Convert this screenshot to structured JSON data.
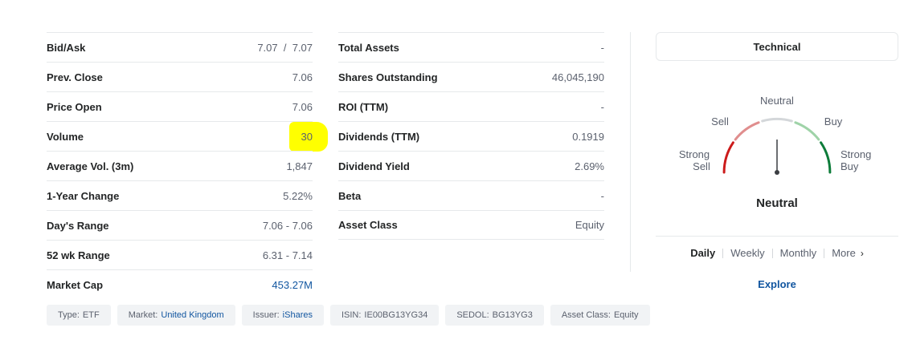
{
  "left_table": [
    {
      "label": "Bid/Ask",
      "value": "7.07  /  7.07"
    },
    {
      "label": "Prev. Close",
      "value": "7.06"
    },
    {
      "label": "Price Open",
      "value": "7.06"
    },
    {
      "label": "Volume",
      "value": "30"
    },
    {
      "label": "Average Vol. (3m)",
      "value": "1,847"
    },
    {
      "label": "1-Year Change",
      "value": "5.22%"
    },
    {
      "label": "Day's Range",
      "value": "7.06 - 7.06"
    },
    {
      "label": "52 wk Range",
      "value": "6.31 - 7.14"
    },
    {
      "label": "Market Cap",
      "value": "453.27M"
    }
  ],
  "mid_table": [
    {
      "label": "Total Assets",
      "value": "-"
    },
    {
      "label": "Shares Outstanding",
      "value": "46,045,190"
    },
    {
      "label": "ROI (TTM)",
      "value": "-"
    },
    {
      "label": "Dividends (TTM)",
      "value": "0.1919"
    },
    {
      "label": "Dividend Yield",
      "value": "2.69%"
    },
    {
      "label": "Beta",
      "value": "-"
    },
    {
      "label": "Asset Class",
      "value": "Equity"
    }
  ],
  "technical": {
    "title": "Technical",
    "gauge_labels": {
      "strong_sell_1": "Strong",
      "strong_sell_2": "Sell",
      "sell": "Sell",
      "neutral": "Neutral",
      "buy": "Buy",
      "strong_buy_1": "Strong",
      "strong_buy_2": "Buy"
    },
    "summary": "Neutral",
    "periods": [
      "Daily",
      "Weekly",
      "Monthly",
      "More"
    ],
    "active_period": "Daily",
    "explore": "Explore",
    "colors": {
      "strong_sell": "#cc1b1b",
      "sell": "#e08e8e",
      "neutral": "#d4d7da",
      "buy": "#9fd3a8",
      "strong_buy": "#0e7c3a",
      "link": "#1256a0",
      "highlight": "#ffff00"
    }
  },
  "chips": [
    {
      "key": "Type:",
      "value": "ETF"
    },
    {
      "key": "Market:",
      "value": "United Kingdom"
    },
    {
      "key": "Issuer:",
      "value": "iShares"
    },
    {
      "key": "ISIN:",
      "value": "IE00BG13YG34"
    },
    {
      "key": "SEDOL:",
      "value": "BG13YG3"
    },
    {
      "key": "Asset Class:",
      "value": "Equity"
    }
  ]
}
